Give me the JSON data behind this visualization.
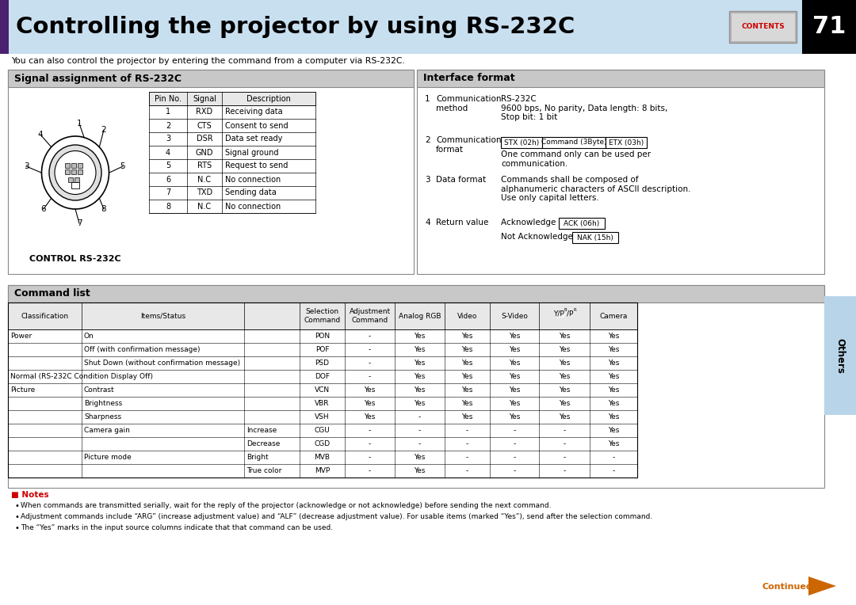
{
  "title": "Controlling the projector by using RS-232C",
  "title_bg": "#c8dff0",
  "title_stripe": "#4b2070",
  "page_num": "71",
  "subtitle": "You can also control the projector by entering the command from a computer via RS-232C.",
  "section1_title": "Signal assignment of RS-232C",
  "section2_title": "Interface format",
  "section3_title": "Command list",
  "pin_table_headers": [
    "Pin No.",
    "Signal",
    "Description"
  ],
  "pin_table_rows": [
    [
      "1",
      "RXD",
      "Receiving data"
    ],
    [
      "2",
      "CTS",
      "Consent to send"
    ],
    [
      "3",
      "DSR",
      "Data set ready"
    ],
    [
      "4",
      "GND",
      "Signal ground"
    ],
    [
      "5",
      "RTS",
      "Request to send"
    ],
    [
      "6",
      "N.C",
      "No connection"
    ],
    [
      "7",
      "TXD",
      "Sending data"
    ],
    [
      "8",
      "N.C",
      "No connection"
    ]
  ],
  "format_boxes": [
    "STX (02h)",
    "Command (3Byte)",
    "ETX (03h)"
  ],
  "cmd_rows": [
    [
      "Power",
      "On",
      "",
      "PON",
      "-",
      "Yes",
      "Yes",
      "Yes",
      "Yes",
      "Yes"
    ],
    [
      "",
      "Off (with confirmation message)",
      "",
      "POF",
      "-",
      "Yes",
      "Yes",
      "Yes",
      "Yes",
      "Yes"
    ],
    [
      "",
      "Shut Down (without confirmation message)",
      "",
      "PSD",
      "-",
      "Yes",
      "Yes",
      "Yes",
      "Yes",
      "Yes"
    ],
    [
      "Normal (RS-232C Condition Display Off)",
      "",
      "",
      "DOF",
      "-",
      "Yes",
      "Yes",
      "Yes",
      "Yes",
      "Yes"
    ],
    [
      "Picture",
      "Contrast",
      "",
      "VCN",
      "Yes",
      "Yes",
      "Yes",
      "Yes",
      "Yes",
      "Yes"
    ],
    [
      "",
      "Brightness",
      "",
      "VBR",
      "Yes",
      "Yes",
      "Yes",
      "Yes",
      "Yes",
      "Yes"
    ],
    [
      "",
      "Sharpness",
      "",
      "VSH",
      "Yes",
      "-",
      "Yes",
      "Yes",
      "Yes",
      "Yes"
    ],
    [
      "",
      "Camera gain",
      "Increase",
      "CGU",
      "-",
      "-",
      "-",
      "-",
      "-",
      "Yes"
    ],
    [
      "",
      "",
      "Decrease",
      "CGD",
      "-",
      "-",
      "-",
      "-",
      "-",
      "Yes"
    ],
    [
      "",
      "Picture mode",
      "Bright",
      "MVB",
      "-",
      "Yes",
      "-",
      "-",
      "-",
      "-"
    ],
    [
      "",
      "",
      "True color",
      "MVP",
      "-",
      "Yes",
      "-",
      "-",
      "-",
      "-"
    ]
  ],
  "notes": [
    "When commands are transmitted serially, wait for the reply of the projector (acknowledge or not acknowledge) before sending the next command.",
    "Adjustment commands include “ARG” (increase adjustment value) and “ALF” (decrease adjustment value). For usable items (marked “Yes”), send after the selection command.",
    "The “Yes” marks in the input source columns indicate that that command can be used."
  ],
  "bg_color": "#ffffff",
  "section_header_bg": "#c8c8c8",
  "table_header_bg": "#e8e8e8"
}
